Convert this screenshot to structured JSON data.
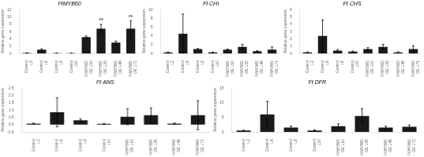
{
  "chart_data": [
    {
      "type": "bar",
      "title": "FtMYB60",
      "ylabel": "Relative gene expression",
      "categories": [
        "Control\nL2",
        "Control\nL6",
        "Control\nL8",
        "Control\nL10",
        "FtMYB60\nOE L10",
        "FtMYB60\nOE L35",
        "FtMYB60\nOE L46",
        "FtMYB60\nOE L71"
      ],
      "values": [
        0.15,
        1.05,
        0.08,
        0.08,
        4.5,
        6.8,
        3.0,
        6.8
      ],
      "errors": [
        0.05,
        0.25,
        0.03,
        0.03,
        0.3,
        1.2,
        0.4,
        2.2
      ],
      "ylim": [
        0,
        12
      ],
      "yticks": [
        0,
        2,
        4,
        6,
        8,
        10,
        12
      ],
      "color": "#1a1a1a",
      "grid": false,
      "annotations": [
        {
          "text": "**",
          "category": "FtMYB60\nOE L35"
        },
        {
          "text": "**",
          "category": "FtMYB60\nOE L71"
        }
      ]
    },
    {
      "type": "bar",
      "title": "Ft CHI",
      "ylabel": "Relative gene expression",
      "categories": [
        "Control\nL2",
        "Control\nL6",
        "Control\nL8",
        "Control\nL10",
        "FtMYB60\nOE L10",
        "FtMYB60\nOE L35",
        "FtMYB60\nOE L46",
        "FtMYB60\nOE L71"
      ],
      "values": [
        0.25,
        4.5,
        1.0,
        0.25,
        0.9,
        1.5,
        0.5,
        0.9
      ],
      "errors": [
        0.05,
        4.5,
        0.15,
        0.08,
        0.12,
        0.6,
        0.12,
        0.6
      ],
      "ylim": [
        0,
        10
      ],
      "yticks": [
        0,
        2,
        4,
        6,
        8,
        10
      ],
      "color": "#1a1a1a",
      "grid": false
    },
    {
      "type": "bar",
      "title": "Ft CHS",
      "ylabel": "Relative gene expression",
      "categories": [
        "Control\nL2",
        "Control\nL6",
        "Control\nL8",
        "Control\nL10",
        "FtMYB60\nOE L10",
        "FtMYB60\nOE L35",
        "FtMYB60\nOE L46",
        "FtMYB60\nOE L71"
      ],
      "values": [
        0.15,
        2.4,
        0.4,
        0.25,
        0.6,
        0.9,
        0.15,
        0.6
      ],
      "errors": [
        0.05,
        2.2,
        0.15,
        0.08,
        0.2,
        0.35,
        0.08,
        0.45
      ],
      "ylim": [
        0,
        6
      ],
      "yticks": [
        0,
        1,
        2,
        3,
        4,
        5,
        6
      ],
      "color": "#1a1a1a",
      "grid": false
    },
    {
      "type": "bar",
      "title": "Ft ANS",
      "ylabel": "Relative gene expression",
      "categories": [
        "Control\nL2",
        "Control\nL6",
        "Control\nL8",
        "Control\nL10",
        "FtMYB60\nOE L10",
        "FtMYB60\nOE L35",
        "FtMYB60\nOE L46",
        "FtMYB60\nOE L71"
      ],
      "values": [
        0.08,
        0.85,
        0.3,
        0.06,
        0.55,
        0.65,
        0.08,
        0.65
      ],
      "errors": [
        0.03,
        1.0,
        0.1,
        0.03,
        0.55,
        0.5,
        0.04,
        1.0
      ],
      "ylim": [
        -0.5,
        2.5
      ],
      "yticks": [
        -0.5,
        {
          "value": 0,
          "label": "0.0"
        },
        0.5,
        {
          "value": 1,
          "label": "1.0"
        },
        1.5,
        {
          "value": 2,
          "label": "2.0"
        },
        2.5
      ],
      "color": "#1a1a1a",
      "grid": false
    },
    {
      "type": "bar",
      "title": "Ft DFR",
      "ylabel": "Relative gene expression",
      "categories": [
        "Control\nL2",
        "Control\nL6",
        "Control\nL8",
        "Control\nL10",
        "FtMYB60\nOE L10",
        "FtMYB60\nOE L35",
        "FtMYB60\nOE L46",
        "FtMYB60\nOE L71"
      ],
      "values": [
        0.5,
        6.0,
        1.5,
        0.5,
        2.0,
        5.5,
        1.5,
        1.8
      ],
      "errors": [
        0.1,
        4.5,
        0.5,
        0.2,
        0.8,
        2.5,
        0.5,
        0.6
      ],
      "ylim": [
        0,
        15
      ],
      "yticks": [
        0,
        5,
        10,
        15
      ],
      "color": "#1a1a1a",
      "grid": false
    }
  ]
}
